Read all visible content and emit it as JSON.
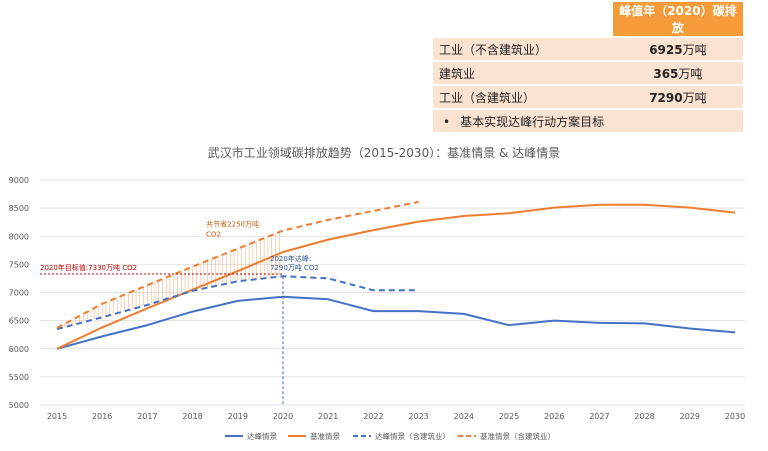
{
  "table": {
    "header_value": "峰值年（2020）碳排放",
    "rows": [
      {
        "label": "工业（不含建筑业）",
        "value": "6925",
        "unit": "万吨"
      },
      {
        "label": "建筑业",
        "value": "365",
        "unit": "万吨"
      },
      {
        "label": "工业（含建筑业）",
        "value": "7290",
        "unit": "万吨"
      }
    ],
    "note_bullet": "•",
    "note": "基本实现达峰行动方案目标"
  },
  "chart_data": {
    "type": "line",
    "title": "武汉市工业领域碳排放趋势（2015-2030）：基准情景 & 达峰情景",
    "xlabel": "",
    "ylabel": "",
    "ylim": [
      5000,
      9000
    ],
    "yticks": [
      5000,
      5500,
      6000,
      6500,
      7000,
      7500,
      8000,
      8500,
      9000
    ],
    "categories": [
      "2015",
      "2016",
      "2017",
      "2018",
      "2019",
      "2020",
      "2021",
      "2022",
      "2023",
      "2024",
      "2025",
      "2026",
      "2027",
      "2028",
      "2029",
      "2030"
    ],
    "series": [
      {
        "name": "达峰情景",
        "color": "#4472c4",
        "dash": false,
        "values": [
          6000,
          6220,
          6420,
          6660,
          6850,
          6925,
          6880,
          6670,
          6670,
          6620,
          6420,
          6500,
          6460,
          6450,
          6360,
          6290
        ]
      },
      {
        "name": "基准情景",
        "color": "#ed7d31",
        "dash": false,
        "values": [
          6000,
          6380,
          6720,
          7050,
          7380,
          7720,
          7940,
          8110,
          8260,
          8360,
          8410,
          8510,
          8560,
          8560,
          8510,
          8420
        ]
      },
      {
        "name": "达峰情景（含建筑业）",
        "color": "#4472c4",
        "dash": true,
        "values": [
          6350,
          6560,
          6780,
          7030,
          7200,
          7290,
          7250,
          7040,
          7040,
          null,
          null,
          null,
          null,
          null,
          null,
          null
        ]
      },
      {
        "name": "基准情景（含建筑业）",
        "color": "#ed7d31",
        "dash": true,
        "values": [
          6370,
          6800,
          7130,
          7460,
          7780,
          8100,
          8290,
          8450,
          8610,
          null,
          null,
          null,
          null,
          null,
          null,
          null
        ]
      }
    ],
    "annotations": {
      "target_label": "2020年目标值:7330万吨 CO2",
      "target_value": 7330,
      "savings_label_1": "共节省2250万吨",
      "savings_label_2": "CO2",
      "peak_label_1": "2020年达峰:",
      "peak_label_2": "7290万吨 CO2",
      "peak_year": "2020"
    },
    "grid": true,
    "legend": "bottom"
  }
}
